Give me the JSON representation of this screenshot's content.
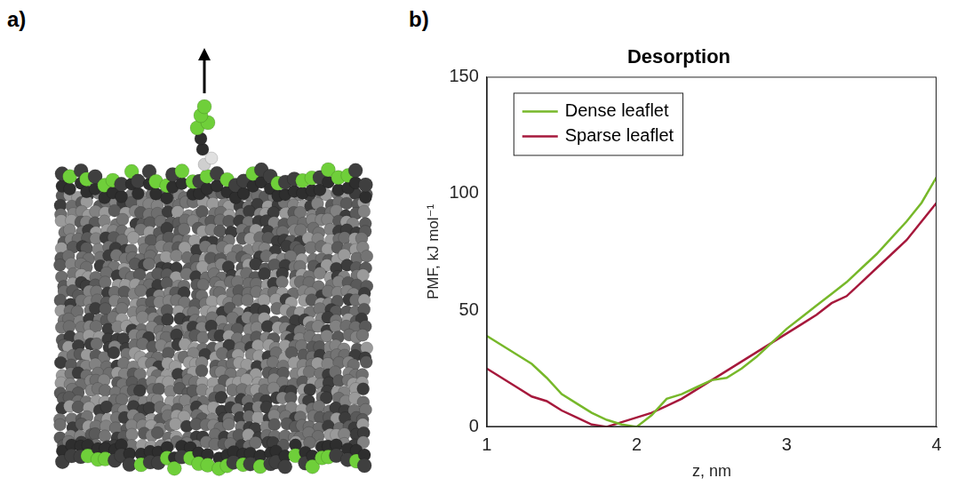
{
  "panel_labels": [
    "a)",
    "b)"
  ],
  "chart_data": {
    "type": "line",
    "title": "Desorption",
    "x_label": "z, nm",
    "y_label": "PMF, kJ mol⁻¹",
    "x": [
      1.0,
      1.1,
      1.2,
      1.3,
      1.4,
      1.5,
      1.6,
      1.7,
      1.8,
      1.9,
      2.0,
      2.1,
      2.2,
      2.3,
      2.4,
      2.5,
      2.6,
      2.7,
      2.8,
      2.9,
      3.0,
      3.1,
      3.2,
      3.3,
      3.4,
      3.5,
      3.6,
      3.7,
      3.8,
      3.9,
      4.0
    ],
    "series": [
      {
        "name": "Dense leaflet",
        "color": "#77b82a",
        "values": [
          39,
          35,
          31,
          27,
          21,
          14,
          10,
          6,
          3,
          1,
          0,
          5,
          12,
          14,
          17,
          20,
          21,
          25,
          30,
          36,
          42,
          47,
          52,
          57,
          62,
          68,
          74,
          81,
          88,
          96,
          107
        ]
      },
      {
        "name": "Sparse leaflet",
        "color": "#a6193c",
        "values": [
          25,
          21,
          17,
          13,
          11,
          7,
          4,
          1,
          0,
          2,
          4,
          6,
          9,
          12,
          16,
          20,
          24,
          28,
          32,
          36,
          40,
          44,
          48,
          53,
          56,
          62,
          68,
          74,
          80,
          88,
          96
        ]
      }
    ],
    "xlim": [
      1,
      4
    ],
    "xticks": [
      1,
      2,
      3,
      4
    ],
    "ylim": [
      0,
      150
    ],
    "yticks": [
      0,
      50,
      100,
      150
    ],
    "grid": false,
    "legend": "upper left"
  }
}
